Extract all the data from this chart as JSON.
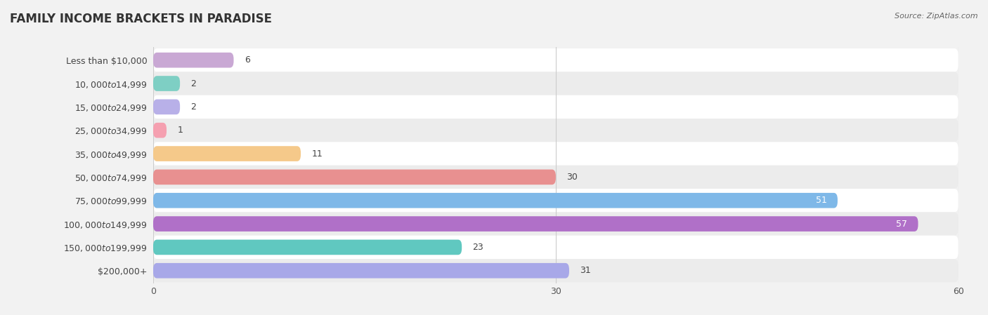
{
  "title": "FAMILY INCOME BRACKETS IN PARADISE",
  "source": "Source: ZipAtlas.com",
  "categories": [
    "Less than $10,000",
    "$10,000 to $14,999",
    "$15,000 to $24,999",
    "$25,000 to $34,999",
    "$35,000 to $49,999",
    "$50,000 to $74,999",
    "$75,000 to $99,999",
    "$100,000 to $149,999",
    "$150,000 to $199,999",
    "$200,000+"
  ],
  "values": [
    6,
    2,
    2,
    1,
    11,
    30,
    51,
    57,
    23,
    31
  ],
  "bar_colors": [
    "#c9a8d4",
    "#7ecfc4",
    "#b8b0e8",
    "#f5a0b0",
    "#f5c98a",
    "#e89090",
    "#7eb8e8",
    "#b070c8",
    "#60c8c0",
    "#a8a8e8"
  ],
  "xlim": [
    0,
    60
  ],
  "xticks": [
    0,
    30,
    60
  ],
  "background_color": "#f2f2f2",
  "row_colors": [
    "#ffffff",
    "#ececec"
  ],
  "title_fontsize": 12,
  "label_fontsize": 9,
  "value_fontsize": 9,
  "tick_fontsize": 9
}
